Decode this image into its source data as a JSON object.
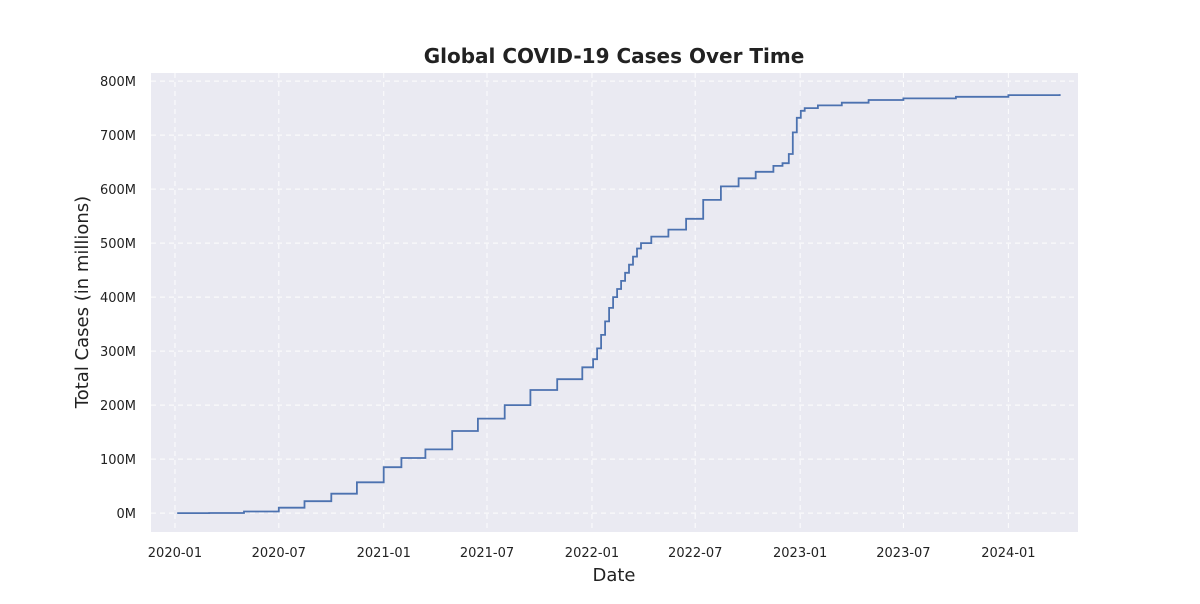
{
  "chart_data": {
    "type": "line",
    "title": "Global COVID-19 Cases Over Time",
    "xlabel": "Date",
    "ylabel": "Total Cases (in millions)",
    "xlim": [
      "2019-11-20",
      "2024-05-02"
    ],
    "ylim": [
      -35,
      815
    ],
    "grid": true,
    "colors": {
      "background": "#eaeaf2",
      "line": "#4c72b0",
      "grid": "#ffffff"
    },
    "x_ticks": [
      {
        "date": "2020-01-01",
        "label": "2020-01"
      },
      {
        "date": "2020-07-01",
        "label": "2020-07"
      },
      {
        "date": "2021-01-01",
        "label": "2021-01"
      },
      {
        "date": "2021-07-01",
        "label": "2021-07"
      },
      {
        "date": "2022-01-01",
        "label": "2022-01"
      },
      {
        "date": "2022-07-01",
        "label": "2022-07"
      },
      {
        "date": "2023-01-01",
        "label": "2023-01"
      },
      {
        "date": "2023-07-01",
        "label": "2023-07"
      },
      {
        "date": "2024-01-01",
        "label": "2024-01"
      }
    ],
    "y_ticks": [
      {
        "value": 0,
        "label": "0M"
      },
      {
        "value": 100,
        "label": "100M"
      },
      {
        "value": 200,
        "label": "200M"
      },
      {
        "value": 300,
        "label": "300M"
      },
      {
        "value": 400,
        "label": "400M"
      },
      {
        "value": 500,
        "label": "500M"
      },
      {
        "value": 600,
        "label": "600M"
      },
      {
        "value": 700,
        "label": "700M"
      },
      {
        "value": 800,
        "label": "800M"
      }
    ],
    "series": [
      {
        "step": true,
        "x": [
          "2020-01-05",
          "2020-03-01",
          "2020-05-01",
          "2020-07-01",
          "2020-08-15",
          "2020-10-01",
          "2020-11-15",
          "2021-01-01",
          "2021-02-01",
          "2021-03-15",
          "2021-05-01",
          "2021-06-15",
          "2021-08-01",
          "2021-09-15",
          "2021-11-01",
          "2021-12-15",
          "2022-01-03",
          "2022-01-10",
          "2022-01-17",
          "2022-01-24",
          "2022-01-31",
          "2022-02-07",
          "2022-02-14",
          "2022-02-21",
          "2022-02-28",
          "2022-03-07",
          "2022-03-14",
          "2022-03-21",
          "2022-03-28",
          "2022-04-15",
          "2022-05-15",
          "2022-06-15",
          "2022-07-15",
          "2022-08-15",
          "2022-09-15",
          "2022-10-15",
          "2022-11-15",
          "2022-12-01",
          "2022-12-12",
          "2022-12-19",
          "2022-12-26",
          "2023-01-02",
          "2023-01-09",
          "2023-02-01",
          "2023-03-15",
          "2023-05-01",
          "2023-07-01",
          "2023-10-01",
          "2024-01-01",
          "2024-03-31"
        ],
        "y": [
          0,
          0.1,
          3,
          10,
          22,
          36,
          57,
          85,
          102,
          118,
          152,
          175,
          200,
          228,
          248,
          270,
          285,
          305,
          330,
          355,
          380,
          400,
          415,
          430,
          445,
          460,
          475,
          490,
          500,
          512,
          525,
          545,
          580,
          605,
          620,
          632,
          643,
          648,
          665,
          705,
          732,
          745,
          750,
          755,
          760,
          765,
          768,
          771,
          774,
          776
        ]
      }
    ]
  }
}
